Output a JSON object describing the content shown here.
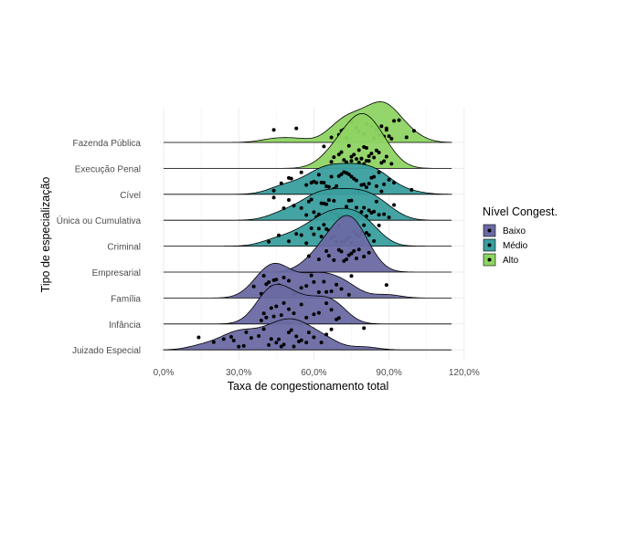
{
  "chart_data": {
    "type": "ridgeline",
    "xlabel": "Taxa de congestionamento total",
    "ylabel": "Tipo de especialização",
    "xlim": [
      0,
      1.15
    ],
    "x_ticks": [
      0,
      0.3,
      0.6,
      0.9,
      1.2
    ],
    "x_tick_labels": [
      "0,0%",
      "30,0%",
      "60,0%",
      "90,0%",
      "120,0%"
    ],
    "grid": true,
    "legend": {
      "title": "Nível Congest.",
      "position": "right",
      "items": [
        {
          "label": "Baixo",
          "color": "#6a6aa3"
        },
        {
          "label": "Médio",
          "color": "#3a9e9e"
        },
        {
          "label": "Alto",
          "color": "#8ed463"
        }
      ]
    },
    "categories": [
      "Fazenda Pública",
      "Execução Penal",
      "Cível",
      "Única ou Cumulativa",
      "Criminal",
      "Empresarial",
      "Família",
      "Infância",
      "Juizado Especial"
    ],
    "series": [
      {
        "name": "Fazenda Pública",
        "level": "Alto",
        "color": "#8ed463",
        "points": [
          0.44,
          0.53,
          0.67,
          0.7,
          0.71,
          0.72,
          0.73,
          0.75,
          0.77,
          0.78,
          0.8,
          0.81,
          0.83,
          0.84,
          0.85,
          0.86,
          0.87,
          0.88,
          0.89,
          0.89,
          0.9,
          0.91,
          0.92,
          0.94,
          0.97,
          1.0
        ]
      },
      {
        "name": "Execução Penal",
        "level": "Alto",
        "color": "#8ed463",
        "points": [
          0.64,
          0.67,
          0.68,
          0.7,
          0.71,
          0.72,
          0.73,
          0.74,
          0.75,
          0.75,
          0.76,
          0.77,
          0.78,
          0.78,
          0.79,
          0.79,
          0.8,
          0.8,
          0.81,
          0.81,
          0.82,
          0.82,
          0.83,
          0.84,
          0.85,
          0.86,
          0.87,
          0.88,
          0.89,
          0.91
        ]
      },
      {
        "name": "Cível",
        "level": "Médio",
        "color": "#3a9e9e",
        "points": [
          0.44,
          0.47,
          0.5,
          0.51,
          0.55,
          0.57,
          0.59,
          0.6,
          0.61,
          0.62,
          0.63,
          0.64,
          0.65,
          0.66,
          0.67,
          0.68,
          0.69,
          0.7,
          0.71,
          0.72,
          0.73,
          0.74,
          0.75,
          0.76,
          0.77,
          0.78,
          0.79,
          0.8,
          0.81,
          0.82,
          0.83,
          0.84,
          0.85,
          0.86,
          0.87,
          0.88,
          0.9,
          0.92,
          0.99
        ]
      },
      {
        "name": "Única ou Cumulativa",
        "level": "Médio",
        "color": "#3a9e9e",
        "points": [
          0.44,
          0.48,
          0.5,
          0.52,
          0.55,
          0.57,
          0.58,
          0.59,
          0.6,
          0.61,
          0.62,
          0.63,
          0.64,
          0.65,
          0.66,
          0.67,
          0.68,
          0.69,
          0.7,
          0.71,
          0.72,
          0.73,
          0.74,
          0.75,
          0.76,
          0.77,
          0.78,
          0.79,
          0.8,
          0.81,
          0.82,
          0.83,
          0.84,
          0.85,
          0.86,
          0.88,
          0.9,
          0.92
        ]
      },
      {
        "name": "Criminal",
        "level": "Médio",
        "color": "#3a9e9e",
        "points": [
          0.42,
          0.46,
          0.5,
          0.53,
          0.55,
          0.57,
          0.59,
          0.6,
          0.62,
          0.63,
          0.64,
          0.65,
          0.66,
          0.67,
          0.68,
          0.69,
          0.7,
          0.71,
          0.72,
          0.73,
          0.74,
          0.75,
          0.76,
          0.77,
          0.78,
          0.79,
          0.8,
          0.81,
          0.82,
          0.84,
          0.86
        ]
      },
      {
        "name": "Empresarial",
        "level": "Baixo",
        "color": "#6a6aa3",
        "points": [
          0.58,
          0.62,
          0.65,
          0.66,
          0.68,
          0.7,
          0.71,
          0.72,
          0.73,
          0.74,
          0.75,
          0.76,
          0.77,
          0.78,
          0.8,
          0.82
        ]
      },
      {
        "name": "Família",
        "level": "Baixo",
        "color": "#6a6aa3",
        "points": [
          0.36,
          0.39,
          0.4,
          0.41,
          0.42,
          0.43,
          0.44,
          0.45,
          0.46,
          0.47,
          0.48,
          0.5,
          0.52,
          0.55,
          0.57,
          0.59,
          0.6,
          0.62,
          0.64,
          0.65,
          0.67,
          0.69,
          0.71,
          0.74,
          0.75,
          0.89
        ]
      },
      {
        "name": "Infância",
        "level": "Baixo",
        "color": "#6a6aa3",
        "points": [
          0.39,
          0.4,
          0.41,
          0.43,
          0.44,
          0.45,
          0.47,
          0.48,
          0.5,
          0.52,
          0.55,
          0.57,
          0.6,
          0.62,
          0.65,
          0.67,
          0.69,
          0.7
        ]
      },
      {
        "name": "Juizado Especial",
        "level": "Baixo",
        "color": "#6a6aa3",
        "points": [
          0.14,
          0.2,
          0.24,
          0.27,
          0.28,
          0.3,
          0.32,
          0.33,
          0.35,
          0.38,
          0.4,
          0.42,
          0.43,
          0.45,
          0.46,
          0.47,
          0.48,
          0.5,
          0.51,
          0.52,
          0.53,
          0.54,
          0.55,
          0.57,
          0.58,
          0.6,
          0.63,
          0.65,
          0.67,
          0.8
        ]
      }
    ]
  }
}
